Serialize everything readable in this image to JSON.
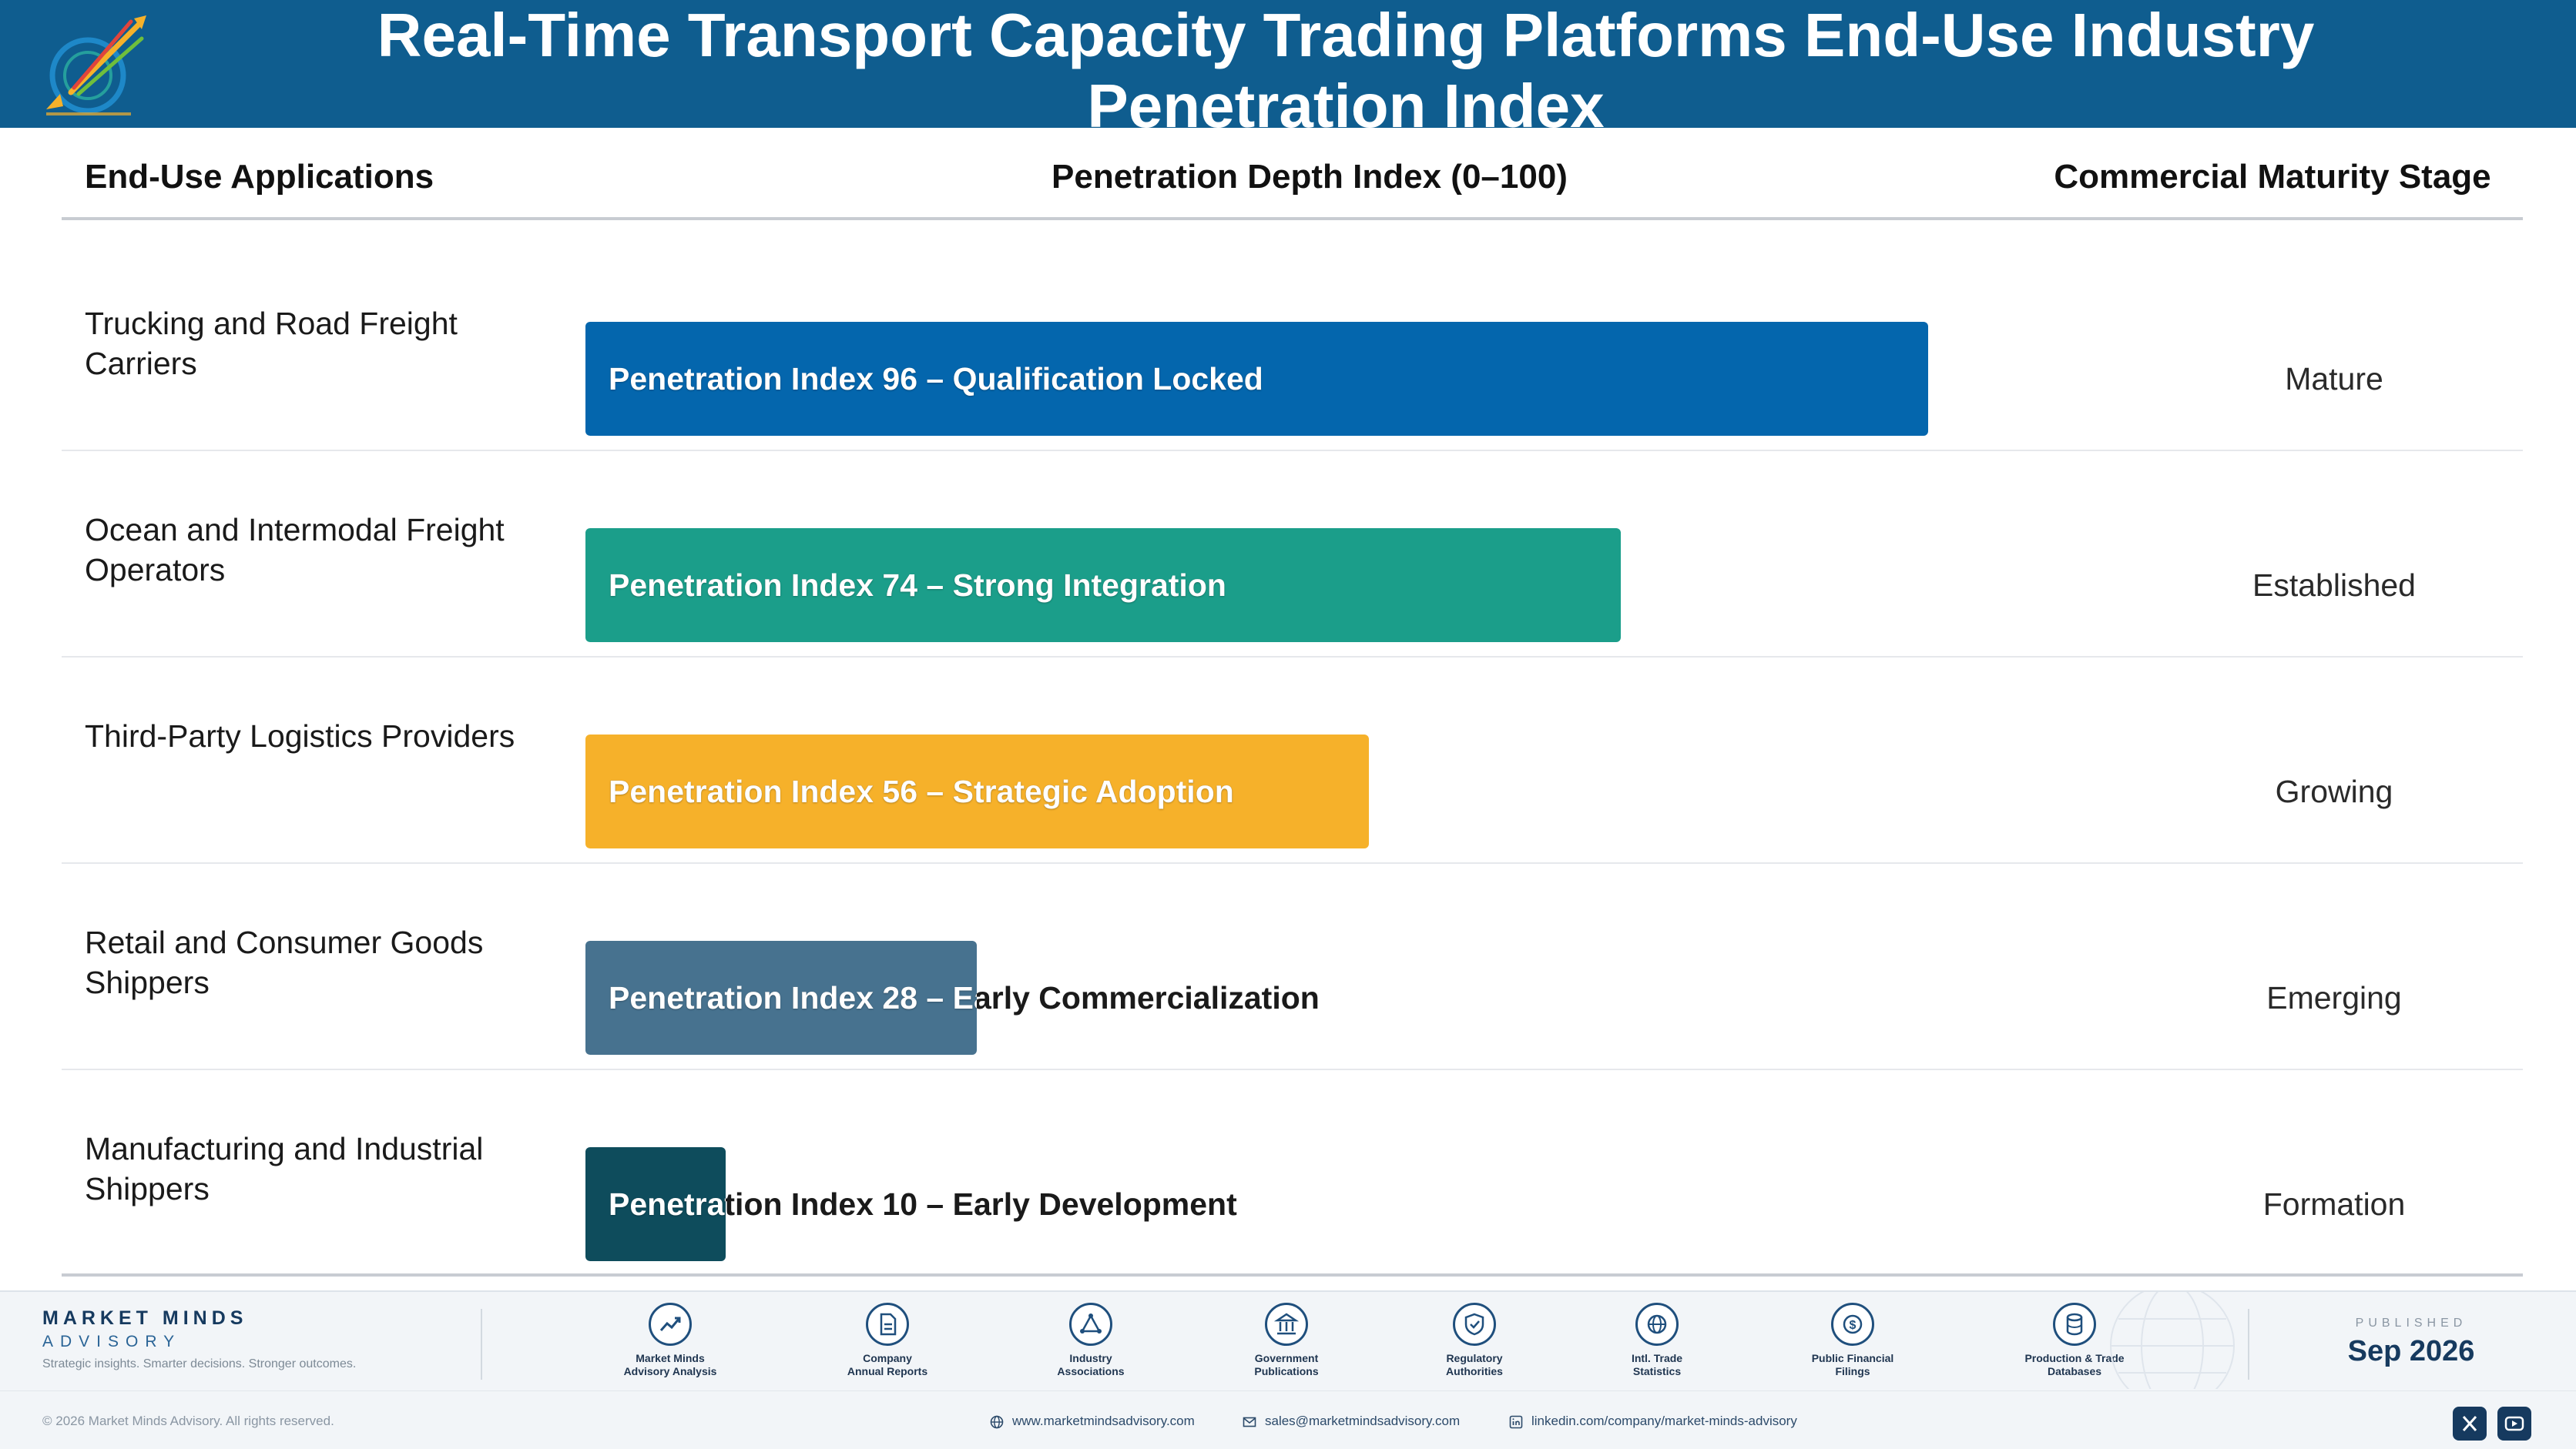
{
  "header": {
    "title": "Real-Time Transport Capacity Trading Platforms End-Use Industry Penetration Index"
  },
  "columns": {
    "application": "End-Use Applications",
    "index": "Penetration Depth Index (0–100)",
    "stage": "Commercial Maturity Stage"
  },
  "colors": {
    "header_bg": "#0f5d8f",
    "bar_1": "#0466ad",
    "bar_2": "#1b9e8a",
    "bar_3": "#f6b12a",
    "bar_4": "#47728f",
    "bar_5": "#0e4c5c"
  },
  "chart_data": {
    "type": "bar",
    "orientation": "horizontal",
    "xlim": [
      0,
      100
    ],
    "categories": [
      "Trucking and Road Freight Carriers",
      "Ocean and Intermodal Freight Operators",
      "Third-Party Logistics Providers",
      "Retail and Consumer Goods Shippers",
      "Manufacturing and Industrial Shippers"
    ],
    "values": [
      96,
      74,
      56,
      28,
      10
    ],
    "rows": [
      {
        "application": "Trucking and Road Freight Carriers",
        "value": 96,
        "bar_label": "Penetration Index 96 – Qualification Locked",
        "stage": "Mature",
        "color": "#0466ad"
      },
      {
        "application": "Ocean and Intermodal Freight Operators",
        "value": 74,
        "bar_label": "Penetration Index 74 – Strong Integration",
        "stage": "Established",
        "color": "#1b9e8a"
      },
      {
        "application": "Third-Party Logistics Providers",
        "value": 56,
        "bar_label": "Penetration Index 56 – Strategic Adoption",
        "stage": "Growing",
        "color": "#f6b12a"
      },
      {
        "application": "Retail and Consumer Goods Shippers",
        "value": 28,
        "bar_label": "Penetration Index 28 – Early Commercialization",
        "stage": "Emerging",
        "color": "#47728f"
      },
      {
        "application": "Manufacturing and Industrial Shippers",
        "value": 10,
        "bar_label": "Penetration Index 10 – Early Development",
        "stage": "Formation",
        "color": "#0e4c5c"
      }
    ]
  },
  "footer": {
    "brand_name": "MARKET MINDS",
    "brand_sub": "ADVISORY",
    "tagline": "Strategic insights. Smarter decisions. Stronger outcomes.",
    "sources": [
      {
        "icon": "chart-line-icon",
        "label_1": "Market Minds",
        "label_2": "Advisory Analysis"
      },
      {
        "icon": "document-icon",
        "label_1": "Company",
        "label_2": "Annual Reports"
      },
      {
        "icon": "network-icon",
        "label_1": "Industry",
        "label_2": "Associations"
      },
      {
        "icon": "government-building-icon",
        "label_1": "Government",
        "label_2": "Publications"
      },
      {
        "icon": "shield-check-icon",
        "label_1": "Regulatory",
        "label_2": "Authorities"
      },
      {
        "icon": "globe-icon",
        "label_1": "Intl. Trade",
        "label_2": "Statistics"
      },
      {
        "icon": "dollar-coin-icon",
        "label_1": "Public Financial",
        "label_2": "Filings"
      },
      {
        "icon": "database-icon",
        "label_1": "Production & Trade",
        "label_2": "Databases"
      }
    ],
    "published_label": "PUBLISHED",
    "published_date": "Sep 2026",
    "copyright": "© 2026 Market Minds Advisory. All rights reserved.",
    "website": "www.marketmindsadvisory.com",
    "email": "sales@marketmindsadvisory.com",
    "linkedin": "linkedin.com/company/market-minds-advisory"
  }
}
